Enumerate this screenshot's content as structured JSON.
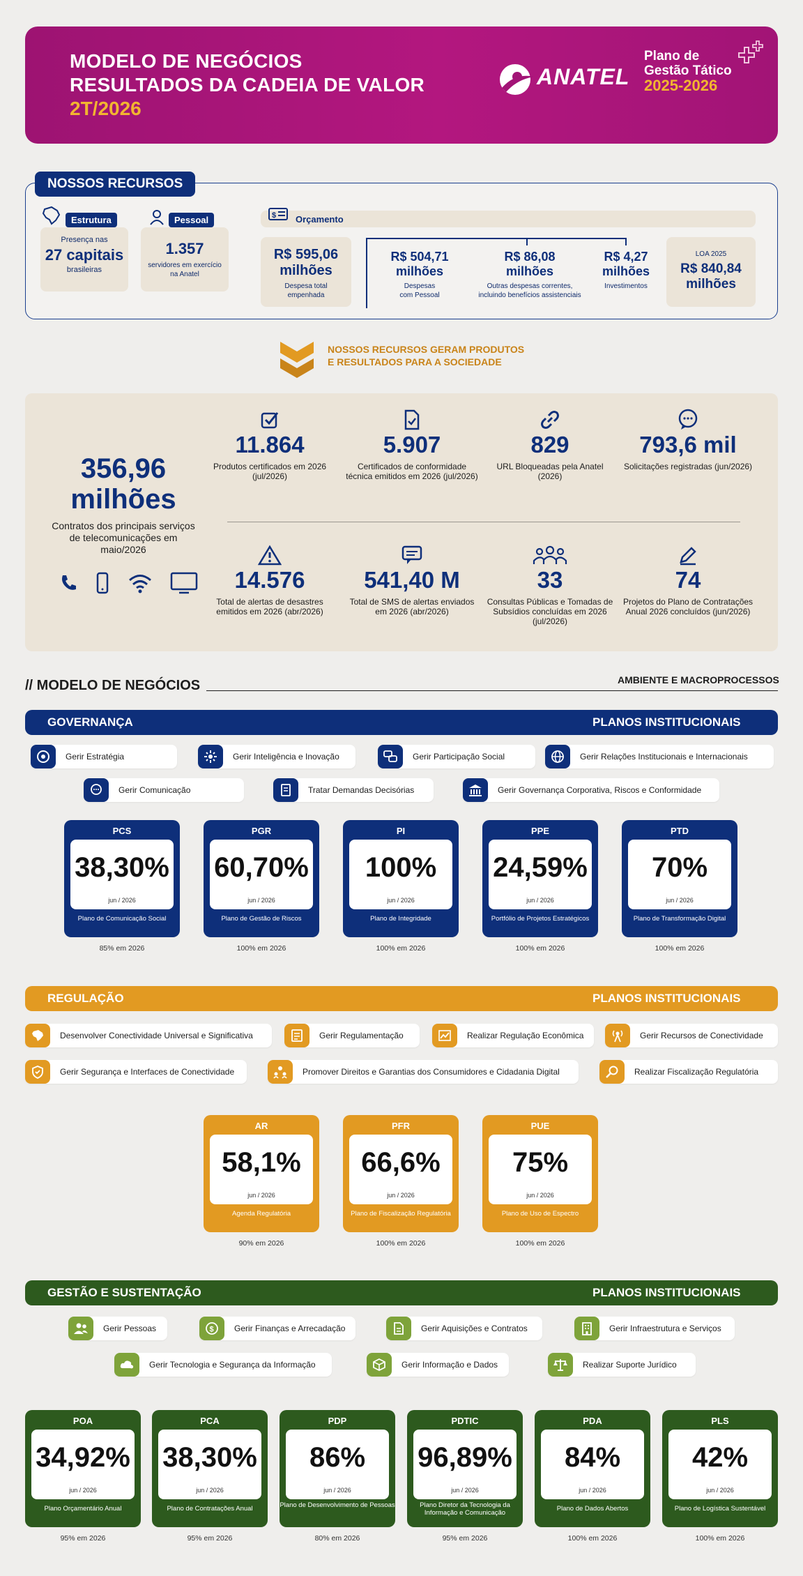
{
  "header": {
    "line1": "MODELO DE NEGÓCIOS",
    "line2": "RESULTADOS DA CADEIA DE VALOR",
    "period": "2T/2026",
    "logo": "ANATEL",
    "plano_line1": "Plano de",
    "plano_line2": "Gestão Tático",
    "plano_years": "2025-2026"
  },
  "recursos": {
    "title": "NOSSOS RECURSOS",
    "estrutura": {
      "tag": "Estrutura",
      "pre": "Presença nas",
      "value": "27 capitais",
      "post": "brasileiras"
    },
    "pessoal": {
      "tag": "Pessoal",
      "value": "1.357",
      "desc": "servidores em exercício na Anatel"
    },
    "orcamento": {
      "tag": "Orçamento",
      "empenhada": {
        "value1": "R$ 595,06",
        "value2": "milhões",
        "desc": "Despesa total empenhada"
      },
      "pessoal": {
        "value1": "R$ 504,71",
        "value2": "milhões",
        "desc": "Despesas com Pessoal"
      },
      "outras": {
        "value1": "R$ 86,08",
        "value2": "milhões",
        "desc": "Outras despesas correntes, incluindo benefícios assistenciais"
      },
      "investimentos": {
        "value1": "R$ 4,27",
        "value2": "milhões",
        "desc": "Investimentos"
      },
      "loa": {
        "label": "LOA 2025",
        "value1": "R$ 840,84",
        "value2": "milhões"
      }
    }
  },
  "separator": {
    "line1": "NOSSOS RECURSOS GERAM PRODUTOS",
    "line2": "E RESULTADOS PARA A SOCIEDADE"
  },
  "resultados": {
    "main": {
      "value1": "356,96",
      "value2": "milhões",
      "desc": "Contratos dos principais serviços de telecomunicações em maio/2026"
    },
    "stats": [
      {
        "value": "11.864",
        "label": "Produtos certificados em 2026 (jul/2026)",
        "icon": "checkbox-icon"
      },
      {
        "value": "5.907",
        "label": "Certificados de conformidade técnica emitidos em 2026 (jul/2026)",
        "icon": "document-check-icon"
      },
      {
        "value": "829",
        "label": "URL Bloqueadas pela Anatel (2026)",
        "icon": "link-icon"
      },
      {
        "value": "793,6 mil",
        "label": "Solicitações registradas (jun/2026)",
        "icon": "support-chat-icon"
      },
      {
        "value": "14.576",
        "label": "Total de alertas de desastres emitidos em 2026 (abr/2026)",
        "icon": "warning-icon"
      },
      {
        "value": "541,40 M",
        "label": "Total de SMS de alertas enviados em 2026 (abr/2026)",
        "icon": "message-icon"
      },
      {
        "value": "33",
        "label": "Consultas Públicas e Tomadas de Subsídios concluídas em 2026 (jul/2026)",
        "icon": "people-icon"
      },
      {
        "value": "74",
        "label": "Projetos do Plano de Contratações Anual 2026 concluídos (jun/2026)",
        "icon": "pencil-icon"
      }
    ]
  },
  "modelo": {
    "title": "// MODELO DE NEGÓCIOS",
    "subtitle": "AMBIENTE E MACROPROCESSOS"
  },
  "governanca": {
    "title": "GOVERNANÇA",
    "right": "PLANOS INSTITUCIONAIS",
    "processes": [
      "Gerir Estratégia",
      "Gerir Inteligência e Inovação",
      "Gerir Participação Social",
      "Gerir Relações Institucionais e Internacionais",
      "Gerir Comunicação",
      "Tratar Demandas Decisórias",
      "Gerir Governança Corporativa, Riscos e Conformidade"
    ],
    "plans": [
      {
        "code": "PCS",
        "value": "38,30%",
        "date": "jun / 2026",
        "name": "Plano de Comunicação Social",
        "meta": "85% em 2026"
      },
      {
        "code": "PGR",
        "value": "60,70%",
        "date": "jun / 2026",
        "name": "Plano de Gestão de Riscos",
        "meta": "100% em 2026"
      },
      {
        "code": "PI",
        "value": "100%",
        "date": "jun / 2026",
        "name": "Plano de Integridade",
        "meta": "100% em 2026"
      },
      {
        "code": "PPE",
        "value": "24,59%",
        "date": "jun / 2026",
        "name": "Portfólio de Projetos Estratégicos",
        "meta": "100% em 2026"
      },
      {
        "code": "PTD",
        "value": "70%",
        "date": "jun / 2026",
        "name": "Plano de Transformação Digital",
        "meta": "100% em 2026"
      }
    ]
  },
  "regulacao": {
    "title": "REGULAÇÃO",
    "right": "PLANOS INSTITUCIONAIS",
    "processes": [
      "Desenvolver Conectividade Universal e Significativa",
      "Gerir Regulamentação",
      "Realizar Regulação Econômica",
      "Gerir Recursos de Conectividade",
      "Gerir Segurança e Interfaces de Conectividade",
      "Promover Direitos e Garantias dos Consumidores e Cidadania Digital",
      "Realizar Fiscalização Regulatória"
    ],
    "plans": [
      {
        "code": "AR",
        "value": "58,1%",
        "date": "jun / 2026",
        "name": "Agenda Regulatória",
        "meta": "90% em 2026"
      },
      {
        "code": "PFR",
        "value": "66,6%",
        "date": "jun / 2026",
        "name": "Plano de Fiscalização Regulatória",
        "meta": "100% em 2026"
      },
      {
        "code": "PUE",
        "value": "75%",
        "date": "jun / 2026",
        "name": "Plano de Uso de Espectro",
        "meta": "100% em 2026"
      }
    ]
  },
  "gestao": {
    "title": "GESTÃO E SUSTENTAÇÃO",
    "right": "PLANOS INSTITUCIONAIS",
    "processes": [
      "Gerir Pessoas",
      "Gerir Finanças e Arrecadação",
      "Gerir Aquisições e Contratos",
      "Gerir Infraestrutura e Serviços",
      "Gerir Tecnologia e Segurança da Informação",
      "Gerir Informação e Dados",
      "Realizar Suporte Jurídico"
    ],
    "plans": [
      {
        "code": "POA",
        "value": "34,92%",
        "date": "jun / 2026",
        "name": "Plano Orçamentário Anual",
        "meta": "95% em 2026"
      },
      {
        "code": "PCA",
        "value": "38,30%",
        "date": "jun / 2026",
        "name": "Plano de Contratações Anual",
        "meta": "95% em 2026"
      },
      {
        "code": "PDP",
        "value": "86%",
        "date": "jun / 2026",
        "name": "Plano de Desenvolvimento de Pessoas",
        "meta": "80% em 2026"
      },
      {
        "code": "PDTIC",
        "value": "96,89%",
        "date": "jun / 2026",
        "name": "Plano Diretor da Tecnologia da Informação e Comunicação",
        "meta": "95% em 2026"
      },
      {
        "code": "PDA",
        "value": "84%",
        "date": "jun / 2026",
        "name": "Plano de Dados Abertos",
        "meta": "100% em 2026"
      },
      {
        "code": "PLS",
        "value": "42%",
        "date": "jun / 2026",
        "name": "Plano de Logística Sustentável",
        "meta": "100% em 2026"
      }
    ]
  },
  "colors": {
    "magenta": "#a21476",
    "navy": "#0e2f7a",
    "gold": "#e29a22",
    "green": "#2d5a1e",
    "beige": "#ebe4d8"
  }
}
